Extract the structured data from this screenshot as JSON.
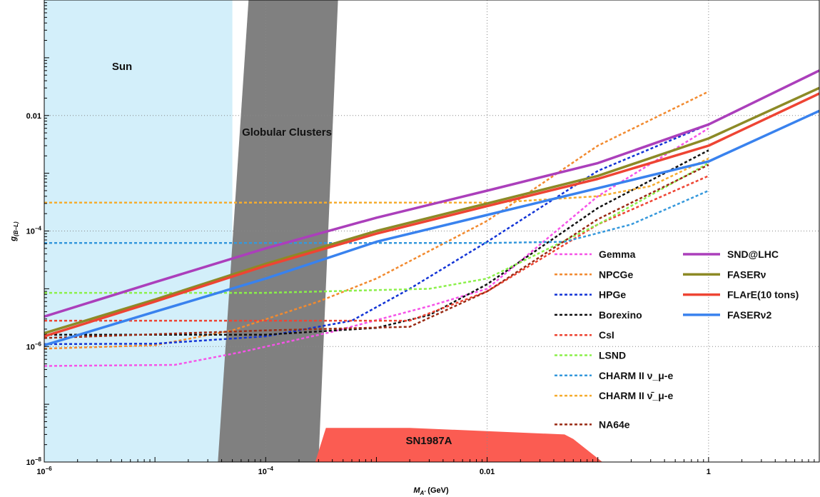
{
  "chart_data": {
    "type": "line",
    "xlabel": "M_A' (GeV)",
    "ylabel": "g(B-L)",
    "xscale": "log",
    "yscale": "log",
    "xlim": [
      1e-06,
      10
    ],
    "ylim": [
      1e-08,
      1
    ],
    "x_ticks": [
      {
        "v": 1e-06,
        "label": "10^-6"
      },
      {
        "v": 0.0001,
        "label": "10^-4"
      },
      {
        "v": 0.01,
        "label": "0.01"
      },
      {
        "v": 1,
        "label": "1"
      }
    ],
    "y_ticks": [
      {
        "v": 1e-08,
        "label": "10^-8"
      },
      {
        "v": 1e-06,
        "label": "10^-6"
      },
      {
        "v": 0.0001,
        "label": "10^-4"
      },
      {
        "v": 0.01,
        "label": "0.01"
      }
    ],
    "grid": "dotted gridlines at major ticks",
    "legend_position": "bottom-right",
    "regions": [
      {
        "name": "Sun",
        "color": "#d3effa",
        "polygon": [
          [
            1e-06,
            1e-08
          ],
          [
            5e-05,
            1e-08
          ],
          [
            5e-05,
            1
          ],
          [
            1e-06,
            1
          ]
        ]
      },
      {
        "name": "Globular Clusters",
        "color": "#808080",
        "polygon": [
          [
            3.7e-05,
            1e-08
          ],
          [
            0.0003,
            1e-08
          ],
          [
            0.00045,
            1
          ],
          [
            7e-05,
            1
          ]
        ]
      },
      {
        "name": "SN1987A",
        "color": "#fb5c52",
        "polygon": [
          [
            0.00028,
            1e-08
          ],
          [
            0.00035,
            3.9e-08
          ],
          [
            0.002,
            3.9e-08
          ],
          [
            0.05,
            3e-08
          ],
          [
            0.06,
            2.5e-08
          ],
          [
            0.11,
            1e-08
          ]
        ]
      }
    ],
    "series": [
      {
        "name": "Gemma",
        "style": "dashed",
        "color": "#f653e8",
        "points": [
          [
            1e-06,
            4.6e-07
          ],
          [
            1.5e-05,
            4.8e-07
          ],
          [
            6e-05,
            8e-07
          ],
          [
            0.0004,
            1.8e-06
          ],
          [
            0.003,
            5e-06
          ],
          [
            0.01,
            1e-05
          ],
          [
            0.1,
            0.0004
          ],
          [
            1,
            0.006
          ]
        ]
      },
      {
        "name": "NPCGe",
        "style": "dashed",
        "color": "#f28a2f",
        "points": [
          [
            1e-06,
            9.2e-07
          ],
          [
            1e-05,
            1.05e-06
          ],
          [
            5e-05,
            1.9e-06
          ],
          [
            0.0003,
            6e-06
          ],
          [
            0.001,
            1.5e-05
          ],
          [
            0.01,
            0.00015
          ],
          [
            0.1,
            0.003
          ],
          [
            1,
            0.026
          ]
        ]
      },
      {
        "name": "HPGe",
        "style": "dashed",
        "color": "#1133d6",
        "points": [
          [
            1e-06,
            1.1e-06
          ],
          [
            1e-05,
            1.12e-06
          ],
          [
            0.0001,
            1.5e-06
          ],
          [
            0.0006,
            2.8e-06
          ],
          [
            0.002,
            1e-05
          ],
          [
            0.01,
            6.5e-05
          ],
          [
            0.1,
            0.0011
          ],
          [
            1,
            0.007
          ]
        ]
      },
      {
        "name": "Borexino",
        "style": "dashed",
        "color": "#111111",
        "points": [
          [
            1e-06,
            1.6e-06
          ],
          [
            0.0001,
            1.6e-06
          ],
          [
            0.001,
            2.1e-06
          ],
          [
            0.003,
            3.5e-06
          ],
          [
            0.01,
            1.2e-05
          ],
          [
            0.1,
            0.00025
          ],
          [
            1,
            0.0025
          ]
        ]
      },
      {
        "name": "CsI",
        "style": "dashed",
        "color": "#ee4433",
        "points": [
          [
            1e-06,
            2.8e-06
          ],
          [
            0.0001,
            2.8e-06
          ],
          [
            0.001,
            2.8e-06
          ],
          [
            0.002,
            2.8e-06
          ],
          [
            0.01,
            9e-06
          ],
          [
            0.1,
            0.00013
          ],
          [
            1,
            0.0009
          ]
        ]
      },
      {
        "name": "LSND",
        "style": "dashed",
        "color": "#8bf04a",
        "points": [
          [
            1e-06,
            8.5e-06
          ],
          [
            0.0001,
            8.5e-06
          ],
          [
            0.003,
            1e-05
          ],
          [
            0.01,
            1.5e-05
          ],
          [
            0.1,
            0.00013
          ],
          [
            1,
            0.0015
          ]
        ]
      },
      {
        "name": "CHARM II ν_μ-e",
        "style": "dashed",
        "color": "#3598dc",
        "points": [
          [
            1e-06,
            6.2e-05
          ],
          [
            0.01,
            6.2e-05
          ],
          [
            0.05,
            6.5e-05
          ],
          [
            0.2,
            0.00013
          ],
          [
            1,
            0.0005
          ]
        ]
      },
      {
        "name": "CHARM II ν̄_μ-e",
        "style": "dashed",
        "color": "#f5ac2f",
        "points": [
          [
            1e-06,
            0.00031
          ],
          [
            0.01,
            0.00031
          ],
          [
            0.02,
            0.00033
          ],
          [
            0.1,
            0.0004
          ],
          [
            0.3,
            0.0006
          ],
          [
            1,
            0.0018
          ]
        ]
      },
      {
        "name": "NA64e",
        "style": "dashed",
        "color": "#992a14",
        "points": [
          [
            1e-06,
            1.4e-06
          ],
          [
            0.0001,
            1.9e-06
          ],
          [
            0.002,
            2.2e-06
          ],
          [
            0.01,
            9e-06
          ],
          [
            0.1,
            0.00016
          ],
          [
            1,
            0.0014
          ]
        ]
      },
      {
        "name": "SND@LHC",
        "style": "solid",
        "color": "#ab3fbb",
        "points": [
          [
            1e-06,
            3.3e-06
          ],
          [
            1e-05,
            1.3e-05
          ],
          [
            0.0001,
            5e-05
          ],
          [
            0.001,
            0.00017
          ],
          [
            0.01,
            0.0005
          ],
          [
            0.1,
            0.0015
          ],
          [
            1,
            0.007
          ],
          [
            10,
            0.06
          ]
        ]
      },
      {
        "name": "FASERν",
        "style": "solid",
        "color": "#8c8a26",
        "points": [
          [
            1e-06,
            1.7e-06
          ],
          [
            1e-05,
            6.5e-06
          ],
          [
            0.0001,
            2.7e-05
          ],
          [
            0.001,
            0.0001
          ],
          [
            0.01,
            0.0003
          ],
          [
            0.1,
            0.0009
          ],
          [
            1,
            0.004
          ],
          [
            10,
            0.03
          ]
        ]
      },
      {
        "name": "FLArE(10 tons)",
        "style": "solid",
        "color": "#ee4433",
        "points": [
          [
            1e-06,
            1.5e-06
          ],
          [
            1e-05,
            6e-06
          ],
          [
            0.0001,
            2.5e-05
          ],
          [
            0.001,
            9e-05
          ],
          [
            0.01,
            0.00027
          ],
          [
            0.1,
            0.0008
          ],
          [
            1,
            0.003
          ],
          [
            10,
            0.024
          ]
        ]
      },
      {
        "name": "FASERν2",
        "style": "solid",
        "color": "#3982ee",
        "points": [
          [
            1e-06,
            1.05e-06
          ],
          [
            1e-05,
            4e-06
          ],
          [
            0.0001,
            1.5e-05
          ],
          [
            0.001,
            6.5e-05
          ],
          [
            0.01,
            0.00019
          ],
          [
            0.1,
            0.00055
          ],
          [
            1,
            0.0016
          ],
          [
            10,
            0.012
          ]
        ]
      }
    ]
  }
}
